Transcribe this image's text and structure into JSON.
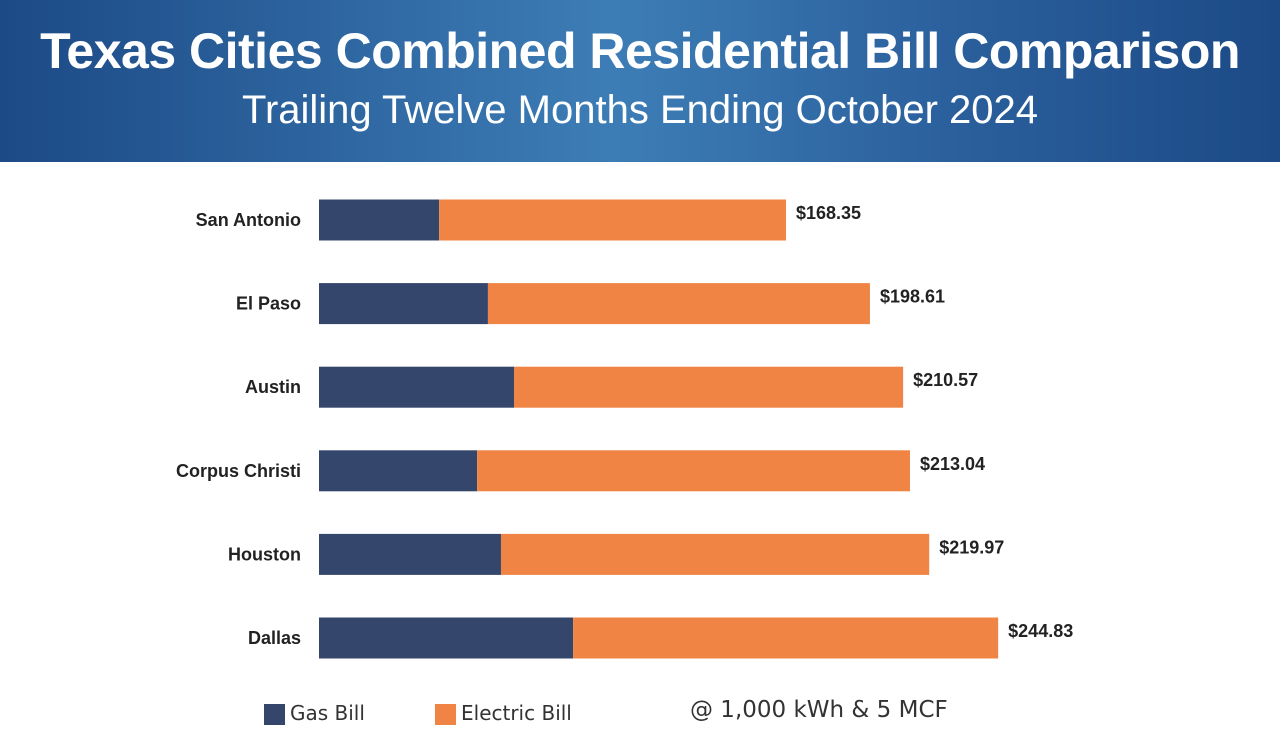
{
  "header": {
    "title": "Texas Cities Combined Residential Bill Comparison",
    "subtitle": "Trailing Twelve Months Ending October 2024"
  },
  "chart_data": {
    "type": "bar",
    "orientation": "horizontal",
    "stacked": true,
    "categories": [
      "San Antonio",
      "El Paso",
      "Austin",
      "Corpus Christi",
      "Houston",
      "Dallas"
    ],
    "series": [
      {
        "name": "Gas Bill",
        "color": "#34466b",
        "values": [
          43.3,
          60.9,
          70.3,
          57.0,
          65.6,
          91.6
        ]
      },
      {
        "name": "Electric Bill",
        "color": "#ef8444",
        "values": [
          125.05,
          137.71,
          140.27,
          156.04,
          154.37,
          153.23
        ]
      }
    ],
    "totals": [
      "$168.35",
      "$198.61",
      "$210.57",
      "$213.04",
      "$219.97",
      "$244.83"
    ],
    "total_values": [
      168.35,
      198.61,
      210.57,
      213.04,
      219.97,
      244.83
    ],
    "xlim": [
      0,
      250
    ],
    "grid": false,
    "legend_position": "bottom",
    "annotation": "@ 1,000 kWh & 5 MCF"
  }
}
